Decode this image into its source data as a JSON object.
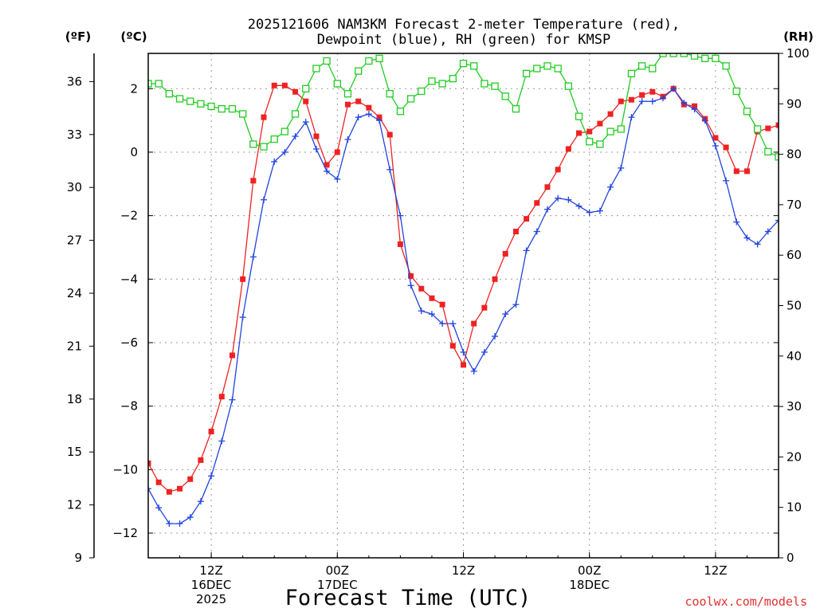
{
  "chart_data": {
    "type": "line",
    "title_line1": "2025121606 NAM3KM Forecast 2-meter Temperature (red),",
    "title_line2": "Dewpoint (blue), RH (green) for KMSP",
    "xlabel": "Forecast Time (UTC)",
    "credit": "coolwx.com/models",
    "units": {
      "f": "(ºF)",
      "c": "(ºC)",
      "rh": "(RH)"
    },
    "hour_range": [
      0,
      60
    ],
    "ylim_c": [
      -12.7778,
      3.1111
    ],
    "ylim_f": [
      9,
      37.6
    ],
    "ylim_rh": [
      0,
      100
    ],
    "left_f_ticks": [
      "9",
      "12",
      "15",
      "18",
      "21",
      "24",
      "27",
      "30",
      "33",
      "36"
    ],
    "c_ticks": [
      "-12",
      "-10",
      "-8",
      "-6",
      "-4",
      "-2",
      "0",
      "2"
    ],
    "rh_ticks": [
      "0",
      "10",
      "20",
      "30",
      "40",
      "50",
      "60",
      "70",
      "80",
      "90",
      "100"
    ],
    "x_ticks": [
      {
        "hour": 6,
        "lines": [
          "12Z",
          "16DEC",
          "2025"
        ]
      },
      {
        "hour": 18,
        "lines": [
          "00Z",
          "17DEC"
        ]
      },
      {
        "hour": 30,
        "lines": [
          "12Z",
          ""
        ]
      },
      {
        "hour": 42,
        "lines": [
          "00Z",
          "18DEC"
        ]
      },
      {
        "hour": 54,
        "lines": [
          "12Z",
          ""
        ]
      }
    ],
    "hours": [
      0,
      1,
      2,
      3,
      4,
      5,
      6,
      7,
      8,
      9,
      10,
      11,
      12,
      13,
      14,
      15,
      16,
      17,
      18,
      19,
      20,
      21,
      22,
      23,
      24,
      25,
      26,
      27,
      28,
      29,
      30,
      31,
      32,
      33,
      34,
      35,
      36,
      37,
      38,
      39,
      40,
      41,
      42,
      43,
      44,
      45,
      46,
      47,
      48,
      49,
      50,
      51,
      52,
      53,
      54,
      55,
      56,
      57,
      58,
      59,
      60
    ],
    "series": [
      {
        "name": "Temperature (°C)",
        "color": "#ee2222",
        "marker": "filled-square",
        "axis": "c",
        "values": [
          -9.8,
          -10.4,
          -10.7,
          -10.6,
          -10.3,
          -9.7,
          -8.8,
          -7.7,
          -6.4,
          -4.0,
          -0.9,
          1.1,
          2.1,
          2.1,
          1.9,
          1.6,
          0.5,
          -0.4,
          0.0,
          1.5,
          1.6,
          1.4,
          1.1,
          0.55,
          -2.9,
          -3.9,
          -4.3,
          -4.6,
          -4.8,
          -6.1,
          -6.7,
          -5.4,
          -4.9,
          -4.0,
          -3.2,
          -2.5,
          -2.1,
          -1.6,
          -1.1,
          -0.55,
          0.1,
          0.6,
          0.65,
          0.9,
          1.2,
          1.6,
          1.65,
          1.8,
          1.9,
          1.75,
          2.0,
          1.5,
          1.45,
          1.05,
          0.45,
          0.15,
          -0.6,
          -0.6,
          0.65,
          0.75,
          0.85
        ]
      },
      {
        "name": "Dewpoint (°C)",
        "color": "#2244dd",
        "marker": "plus",
        "axis": "c",
        "values": [
          -10.6,
          -11.2,
          -11.7,
          -11.7,
          -11.5,
          -11.0,
          -10.2,
          -9.1,
          -7.8,
          -5.2,
          -3.3,
          -1.5,
          -0.3,
          0.0,
          0.5,
          0.95,
          0.1,
          -0.6,
          -0.85,
          0.4,
          1.1,
          1.2,
          1.0,
          -0.55,
          -2.0,
          -4.2,
          -5.0,
          -5.1,
          -5.4,
          -5.4,
          -6.3,
          -6.9,
          -6.3,
          -5.8,
          -5.1,
          -4.8,
          -3.1,
          -2.5,
          -1.8,
          -1.45,
          -1.5,
          -1.7,
          -1.9,
          -1.85,
          -1.1,
          -0.5,
          1.1,
          1.6,
          1.6,
          1.7,
          2.0,
          1.55,
          1.35,
          1.0,
          0.2,
          -0.9,
          -2.2,
          -2.7,
          -2.9,
          -2.5,
          -2.15
        ]
      },
      {
        "name": "RH (%)",
        "color": "#22cc22",
        "marker": "open-square",
        "axis": "rh",
        "values": [
          94,
          94,
          92,
          91,
          90.5,
          90,
          89.5,
          89,
          89,
          88,
          82,
          81.5,
          83,
          84.5,
          88,
          93,
          97,
          98.5,
          94,
          92,
          96.5,
          98.5,
          99,
          92,
          88.5,
          91,
          92.5,
          94.5,
          94,
          95,
          98,
          97.5,
          94,
          93.5,
          91.5,
          89,
          96,
          97,
          97.5,
          97,
          93.5,
          87.5,
          82.5,
          82,
          84.5,
          85,
          96,
          97.5,
          97,
          100,
          100,
          100,
          99.5,
          99,
          99,
          97.5,
          92.5,
          88.5,
          85,
          80.5,
          79.5
        ]
      }
    ]
  }
}
